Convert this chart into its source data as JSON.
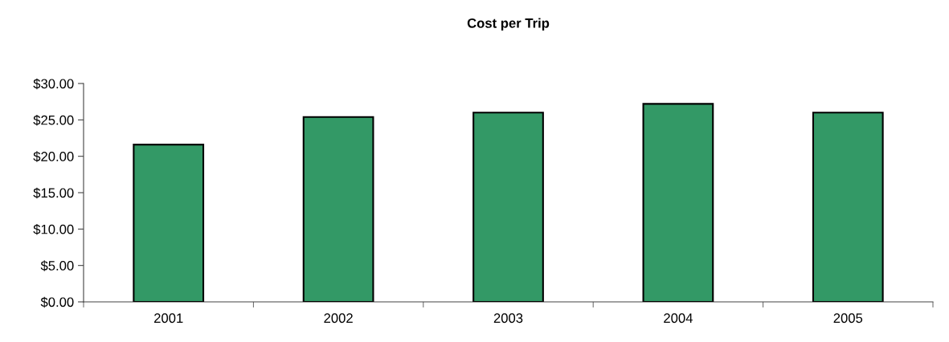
{
  "chart_data": {
    "type": "bar",
    "title": "Cost per Trip",
    "categories": [
      "2001",
      "2002",
      "2003",
      "2004",
      "2005"
    ],
    "values": [
      21.6,
      25.4,
      26.0,
      27.2,
      26.0
    ],
    "color": "#339966",
    "ylim": [
      0,
      30
    ],
    "yticks": [
      {
        "value": 0,
        "label": "$0.00"
      },
      {
        "value": 5,
        "label": "$5.00"
      },
      {
        "value": 10,
        "label": "$10.00"
      },
      {
        "value": 15,
        "label": "$15.00"
      },
      {
        "value": 20,
        "label": "$20.00"
      },
      {
        "value": 25,
        "label": "$25.00"
      },
      {
        "value": 30,
        "label": "$30.00"
      }
    ],
    "grid": false
  }
}
